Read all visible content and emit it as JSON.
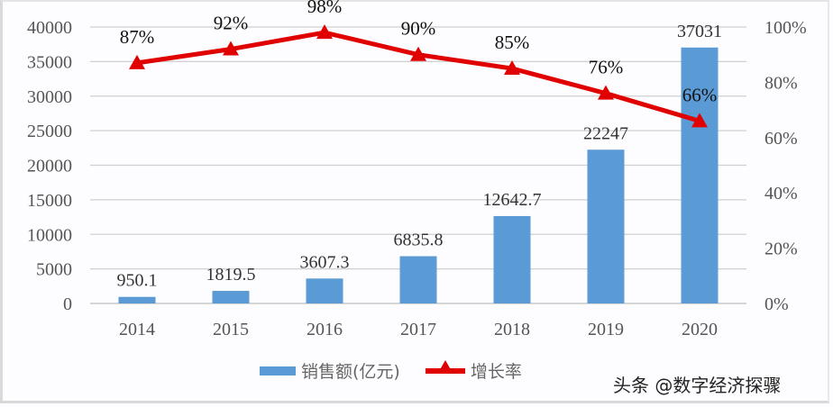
{
  "chart_data": {
    "type": "bar+line",
    "title": "",
    "categories": [
      "2014",
      "2015",
      "2016",
      "2017",
      "2018",
      "2019",
      "2020"
    ],
    "series": [
      {
        "name": "销售额(亿元)",
        "type": "bar",
        "axis": "left",
        "color": "#5b9bd5",
        "values": [
          950.1,
          1819.5,
          3607.3,
          6835.8,
          12642.7,
          22247,
          37031
        ],
        "labels": [
          "950.1",
          "1819.5",
          "3607.3",
          "6835.8",
          "12642.7",
          "22247",
          "37031"
        ]
      },
      {
        "name": "增长率",
        "type": "line",
        "axis": "right",
        "color": "#e00000",
        "marker": "triangle",
        "values": [
          87,
          92,
          98,
          90,
          85,
          76,
          66
        ],
        "labels": [
          "87%",
          "92%",
          "98%",
          "90%",
          "85%",
          "76%",
          "66%"
        ]
      }
    ],
    "left_axis": {
      "ylim": [
        0,
        40000
      ],
      "ticks": [
        "0",
        "5000",
        "10000",
        "15000",
        "20000",
        "25000",
        "30000",
        "35000",
        "40000"
      ]
    },
    "right_axis": {
      "ylim": [
        0,
        100
      ],
      "ticks": [
        "0%",
        "20%",
        "40%",
        "60%",
        "80%",
        "100%"
      ]
    },
    "xlabel": "",
    "ylabel": "",
    "grid": true,
    "legend_position": "bottom"
  },
  "legend": {
    "bar_label": "销售额(亿元)",
    "line_label": "增长率"
  },
  "watermark": "头条 @数字经济探骤"
}
